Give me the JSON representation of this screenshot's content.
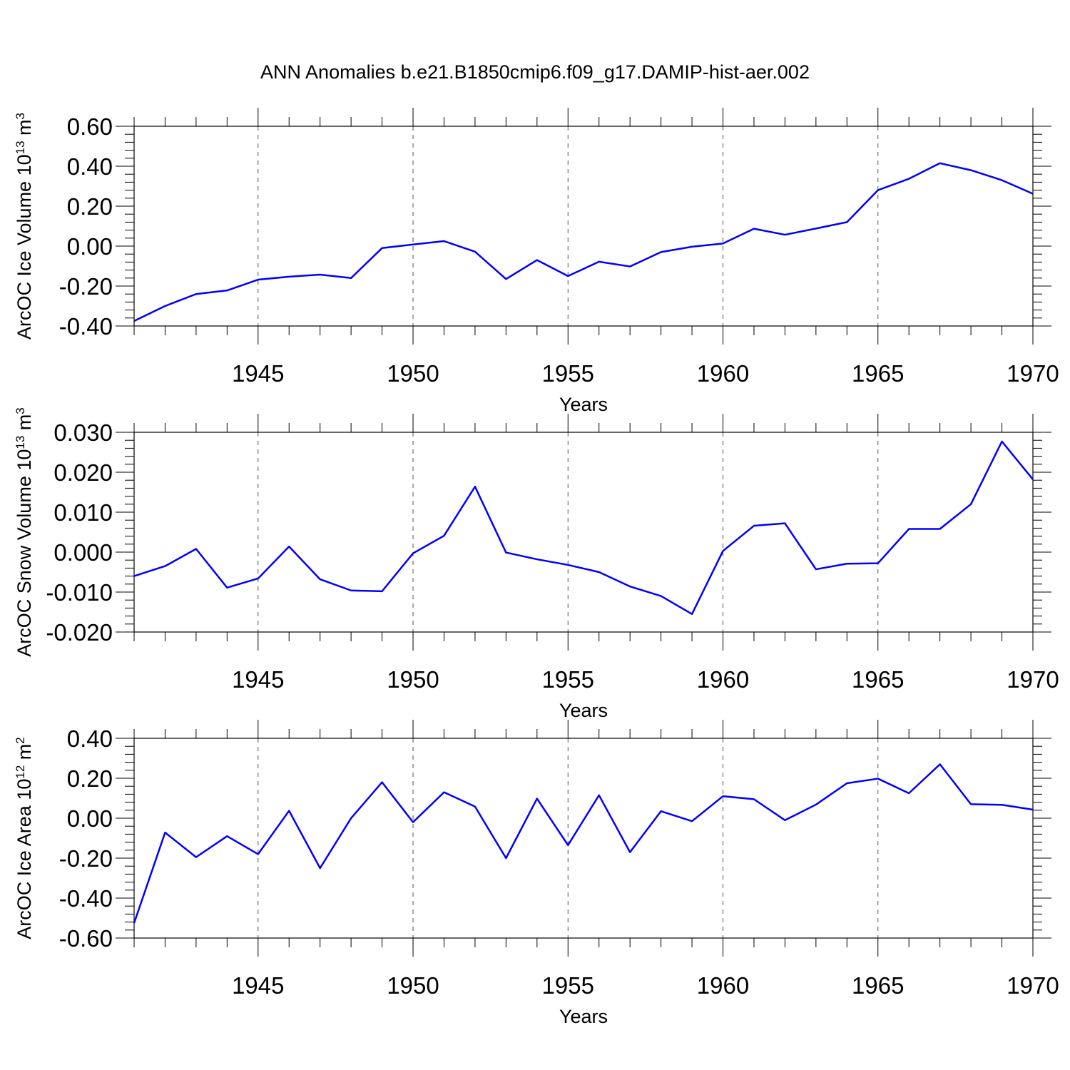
{
  "chart_data": [
    {
      "type": "line",
      "title": "ANN Anomalies b.e21.B1850cmip6.f09_g17.DAMIP-hist-aer.002",
      "xlabel": "Years",
      "ylabel": "ArcOC Ice Volume 10",
      "ylabel_exp": "13",
      "ylabel_unit": " m",
      "ylabel_unit_exp": "3",
      "xlim": [
        1941,
        1970
      ],
      "ylim": [
        -0.4,
        0.6
      ],
      "yticks": [
        -0.4,
        -0.2,
        0.0,
        0.2,
        0.4,
        0.6
      ],
      "ytick_labels": [
        "-0.40",
        "-0.20",
        "0.00",
        "0.20",
        "0.40",
        "0.60"
      ],
      "xticks": [
        1945,
        1950,
        1955,
        1960,
        1965,
        1970
      ],
      "xtick_labels": [
        "1945",
        "1950",
        "1955",
        "1960",
        "1965",
        "1970"
      ],
      "grid": "vertical dashed at major x ticks",
      "line_color": "#0000ff",
      "series": [
        {
          "name": "ArcOC Ice Volume",
          "x": [
            1941,
            1942,
            1943,
            1944,
            1945,
            1946,
            1947,
            1948,
            1949,
            1950,
            1951,
            1952,
            1953,
            1954,
            1955,
            1956,
            1957,
            1958,
            1959,
            1960,
            1961,
            1962,
            1963,
            1964,
            1965,
            1966,
            1967,
            1968,
            1969,
            1970
          ],
          "values": [
            -0.375,
            -0.3,
            -0.24,
            -0.222,
            -0.168,
            -0.153,
            -0.143,
            -0.16,
            -0.01,
            0.008,
            0.025,
            -0.028,
            -0.165,
            -0.07,
            -0.15,
            -0.078,
            -0.102,
            -0.03,
            -0.003,
            0.013,
            0.087,
            0.057,
            0.088,
            0.12,
            0.28,
            0.337,
            0.415,
            0.38,
            0.33,
            0.262
          ]
        }
      ]
    },
    {
      "type": "line",
      "xlabel": "Years",
      "ylabel": "ArcOC Snow Volume 10",
      "ylabel_exp": "13",
      "ylabel_unit": " m",
      "ylabel_unit_exp": "3",
      "xlim": [
        1941,
        1970
      ],
      "ylim": [
        -0.02,
        0.03
      ],
      "yticks": [
        -0.02,
        -0.01,
        0.0,
        0.01,
        0.02,
        0.03
      ],
      "ytick_labels": [
        "-0.020",
        "-0.010",
        "0.000",
        "0.010",
        "0.020",
        "0.030"
      ],
      "xticks": [
        1945,
        1950,
        1955,
        1960,
        1965,
        1970
      ],
      "xtick_labels": [
        "1945",
        "1950",
        "1955",
        "1960",
        "1965",
        "1970"
      ],
      "grid": "vertical dashed at major x ticks",
      "line_color": "#0000ff",
      "series": [
        {
          "name": "ArcOC Snow Volume",
          "x": [
            1941,
            1942,
            1943,
            1944,
            1945,
            1946,
            1947,
            1948,
            1949,
            1950,
            1951,
            1952,
            1953,
            1954,
            1955,
            1956,
            1957,
            1958,
            1959,
            1960,
            1961,
            1962,
            1963,
            1964,
            1965,
            1966,
            1967,
            1968,
            1969,
            1970
          ],
          "values": [
            -0.006,
            -0.0035,
            0.0008,
            -0.0089,
            -0.0066,
            0.0014,
            -0.0068,
            -0.0096,
            -0.0098,
            -0.0003,
            0.0041,
            0.0164,
            -0.0001,
            -0.0018,
            -0.0032,
            -0.005,
            -0.0086,
            -0.011,
            -0.0155,
            0.0003,
            0.0066,
            0.0072,
            -0.0043,
            -0.0029,
            -0.0028,
            0.0058,
            0.0058,
            0.012,
            0.0277,
            0.0182
          ]
        }
      ]
    },
    {
      "type": "line",
      "xlabel": "Years",
      "ylabel": "ArcOC Ice Area 10",
      "ylabel_exp": "12",
      "ylabel_unit": " m",
      "ylabel_unit_exp": "2",
      "xlim": [
        1941,
        1970
      ],
      "ylim": [
        -0.6,
        0.4
      ],
      "yticks": [
        -0.6,
        -0.4,
        -0.2,
        0.0,
        0.2,
        0.4
      ],
      "ytick_labels": [
        "-0.60",
        "-0.40",
        "-0.20",
        "0.00",
        "0.20",
        "0.40"
      ],
      "xticks": [
        1945,
        1950,
        1955,
        1960,
        1965,
        1970
      ],
      "xtick_labels": [
        "1945",
        "1950",
        "1955",
        "1960",
        "1965",
        "1970"
      ],
      "grid": "vertical dashed at major x ticks",
      "line_color": "#0000ff",
      "series": [
        {
          "name": "ArcOC Ice Area",
          "x": [
            1941,
            1942,
            1943,
            1944,
            1945,
            1946,
            1947,
            1948,
            1949,
            1950,
            1951,
            1952,
            1953,
            1954,
            1955,
            1956,
            1957,
            1958,
            1959,
            1960,
            1961,
            1962,
            1963,
            1964,
            1965,
            1966,
            1967,
            1968,
            1969,
            1970
          ],
          "values": [
            -0.525,
            -0.072,
            -0.195,
            -0.09,
            -0.18,
            0.037,
            -0.25,
            0.0,
            0.18,
            -0.02,
            0.13,
            0.058,
            -0.2,
            0.098,
            -0.135,
            0.115,
            -0.17,
            0.035,
            -0.015,
            0.11,
            0.095,
            -0.01,
            0.068,
            0.175,
            0.198,
            0.125,
            0.27,
            0.07,
            0.067,
            0.043
          ]
        }
      ]
    }
  ]
}
